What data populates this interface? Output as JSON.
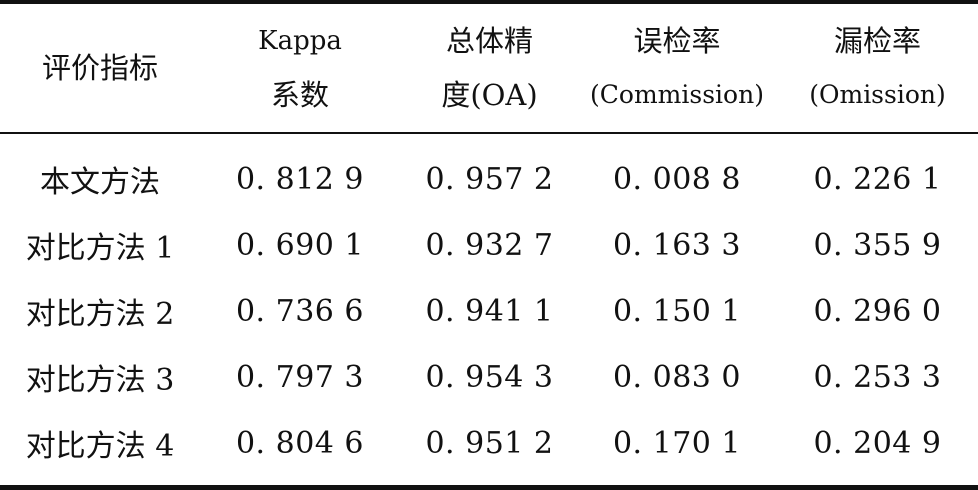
{
  "table": {
    "headers": [
      {
        "lines": [
          "评价指标"
        ]
      },
      {
        "lines": [
          "Kappa",
          "系数"
        ]
      },
      {
        "lines": [
          "总体精",
          "度(OA)"
        ]
      },
      {
        "lines": [
          "误检率",
          "(Commission)"
        ]
      },
      {
        "lines": [
          "漏检率",
          "(Omission)"
        ]
      }
    ],
    "rows": [
      [
        "本文方法",
        "0. 812 9",
        "0. 957 2",
        "0. 008 8",
        "0. 226 1"
      ],
      [
        "对比方法 1",
        "0. 690 1",
        "0. 932 7",
        "0. 163 3",
        "0. 355 9"
      ],
      [
        "对比方法 2",
        "0. 736 6",
        "0. 941 1",
        "0. 150 1",
        "0. 296 0"
      ],
      [
        "对比方法 3",
        "0. 797 3",
        "0. 954 3",
        "0. 083 0",
        "0. 253 3"
      ],
      [
        "对比方法 4",
        "0. 804 6",
        "0. 951 2",
        "0. 170 1",
        "0. 204 9"
      ]
    ]
  }
}
